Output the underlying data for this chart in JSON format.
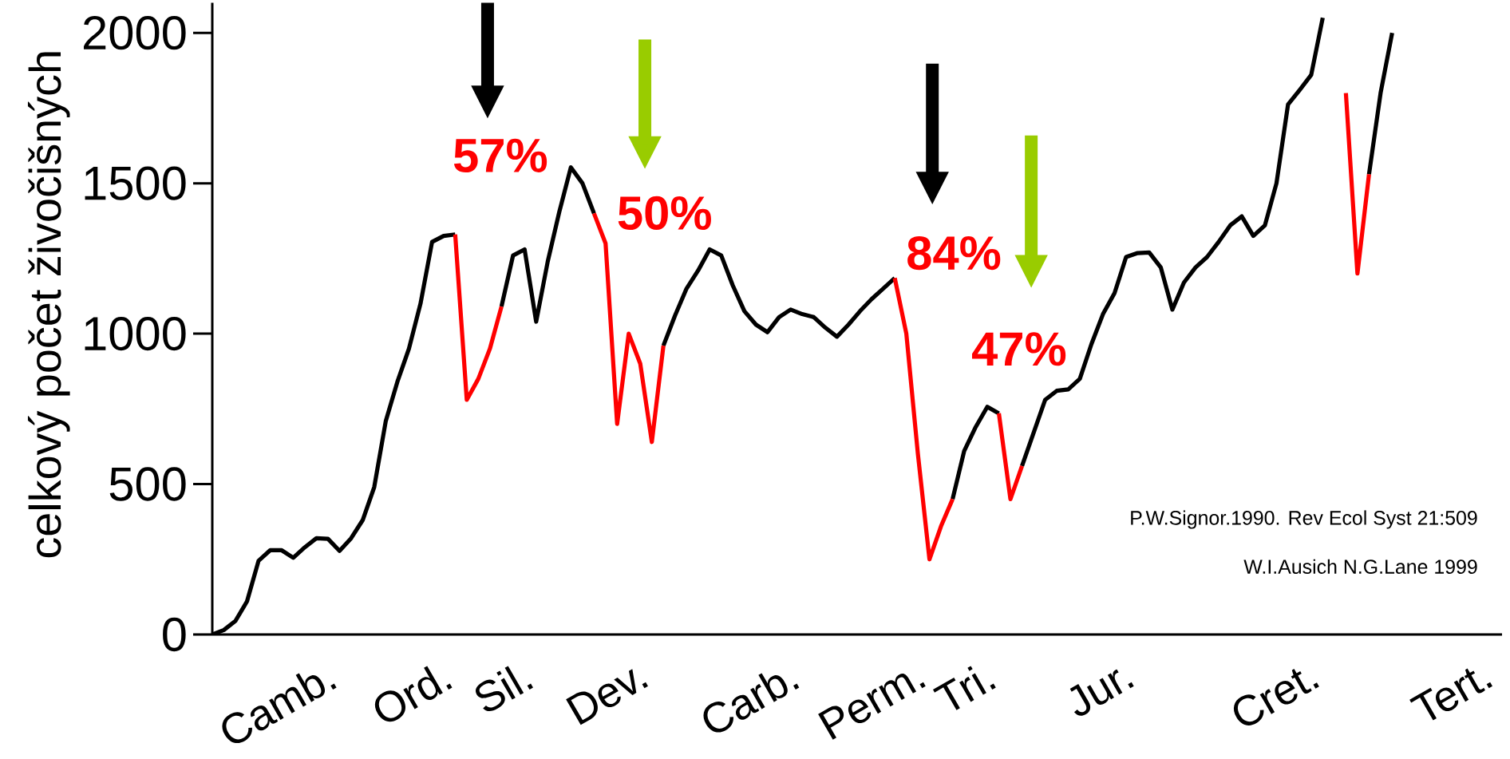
{
  "chart_data": {
    "type": "line",
    "ylabel": "celkový počet živočišných",
    "categories": [
      null,
      null,
      null,
      null,
      null,
      null,
      null,
      null,
      null,
      null,
      "Camb.",
      null,
      null,
      null,
      null,
      null,
      null,
      null,
      null,
      null,
      "Ord.",
      null,
      null,
      null,
      null,
      null,
      null,
      "Sil.",
      null,
      null,
      null,
      null,
      null,
      null,
      null,
      null,
      null,
      "Dev.",
      null,
      null,
      null,
      null,
      null,
      null,
      null,
      null,
      null,
      null,
      null,
      null,
      "Carb.",
      null,
      null,
      null,
      null,
      null,
      null,
      null,
      null,
      null,
      null,
      "Perm.",
      null,
      null,
      null,
      null,
      null,
      "Tri.",
      null,
      null,
      null,
      null,
      null,
      null,
      null,
      null,
      null,
      null,
      null,
      "Jur.",
      null,
      null,
      null,
      null,
      null,
      null,
      null,
      null,
      null,
      null,
      null,
      null,
      null,
      null,
      null,
      "Cret.",
      null,
      null,
      null,
      null,
      null,
      null,
      null,
      null,
      null,
      null,
      null,
      null,
      null,
      null,
      "Tert.",
      null
    ],
    "series": [
      {
        "color": "#000000",
        "values": [
          0,
          15,
          45,
          110,
          245,
          280,
          280,
          255,
          290,
          320,
          318,
          278,
          320,
          380,
          490,
          710,
          840,
          950,
          1100,
          1305,
          1325,
          1330,
          null,
          null,
          null,
          1090,
          1260,
          1280,
          1040,
          1240,
          1405,
          1553,
          1500,
          1400,
          null,
          null,
          null,
          null,
          null,
          960,
          1060,
          1150,
          1210,
          1280,
          1260,
          1160,
          1075,
          1030,
          1005,
          1055,
          1080,
          1065,
          1055,
          1020,
          990,
          1030,
          1075,
          1115,
          1150,
          1185,
          null,
          null,
          null,
          null,
          450,
          610,
          690,
          757,
          735,
          null,
          560,
          670,
          780,
          810,
          815,
          850,
          965,
          1065,
          1135,
          1255,
          1268,
          1270,
          1220,
          1080,
          1170,
          1220,
          1255,
          1305,
          1360,
          1390,
          1325,
          1360,
          1500,
          1762,
          1810,
          1860,
          2050,
          null,
          null,
          null,
          1530,
          1800,
          2000,
          null,
          null,
          null,
          null,
          null,
          null,
          null,
          null,
          null
        ]
      },
      {
        "color": "#ff0000",
        "values": [
          null,
          null,
          null,
          null,
          null,
          null,
          null,
          null,
          null,
          null,
          null,
          null,
          null,
          null,
          null,
          null,
          null,
          null,
          null,
          null,
          null,
          1330,
          780,
          850,
          950,
          1090,
          null,
          null,
          null,
          null,
          null,
          null,
          null,
          1400,
          1300,
          700,
          1000,
          900,
          640,
          960,
          null,
          null,
          null,
          null,
          null,
          null,
          null,
          null,
          null,
          null,
          null,
          null,
          null,
          null,
          null,
          null,
          null,
          null,
          null,
          1185,
          1000,
          600,
          250,
          360,
          450,
          null,
          null,
          null,
          735,
          450,
          560,
          null,
          null,
          null,
          null,
          null,
          null,
          null,
          null,
          null,
          null,
          null,
          null,
          null,
          null,
          null,
          null,
          null,
          null,
          null,
          null,
          null,
          null,
          null,
          null,
          null,
          null,
          null,
          1800,
          1200,
          1530,
          null,
          null,
          null,
          null,
          null,
          null,
          null,
          null,
          null,
          null,
          null
        ]
      }
    ],
    "ylim": [
      0,
      2100
    ],
    "yticks": [
      0,
      500,
      1000,
      1500,
      2000
    ],
    "annotations": [
      "57%",
      "50%",
      "84%",
      "47%",
      "P.W.Signor.1990. Rev Ecol Syst 21:509",
      "W.I.Ausich N.G.Lane 1999"
    ]
  }
}
